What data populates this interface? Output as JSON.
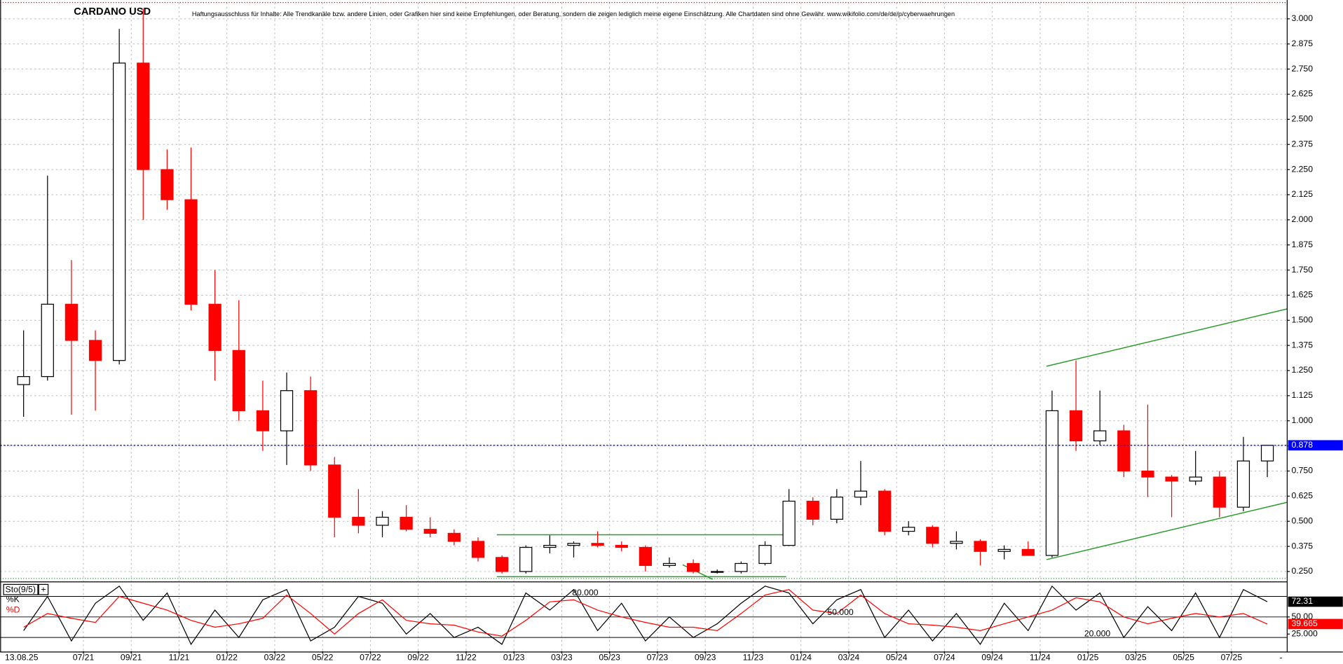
{
  "chart_data": {
    "type": "candlestick",
    "title": "CARDANO USD",
    "disclaimer": "Haftungsausschluss für Inhalte: Alle Trendkanäle bzw. andere Linien, oder Grafiken hier sind keine Empfehlungen, oder Beratung, sondern die zeigen lediglich meine eigene Einschätzung. Alle Chartdaten sind ohne Gewähr.  www.wikifolio.com/de/de/p/cyberwaehrungen",
    "date_label": "13.08.25",
    "up_color": "#000000",
    "down_color": "#ff0000",
    "last_price_color": "#0000ff",
    "grid": true,
    "x": [
      0.5,
      1.5,
      2.5,
      3.5,
      4.5,
      5.5,
      6.5,
      7.5,
      8.5,
      9.5,
      10.5,
      11.5,
      12.5,
      13.5,
      14.5,
      15.5,
      16.5,
      17.5,
      18.5,
      19.5,
      20.5,
      21.5,
      22.5,
      23.5,
      24.5,
      25.5,
      26.5,
      27.5,
      28.5,
      29.5,
      30.5,
      31.5,
      32.5,
      33.5,
      34.5,
      35.5,
      36.5,
      37.5,
      38.5,
      39.5,
      40.5,
      41.5,
      42.5,
      43.5,
      44.5,
      45.5,
      46.5,
      47.5,
      48.5,
      49.5,
      50.5,
      51.5,
      52.5
    ],
    "open": [
      1.18,
      1.22,
      1.58,
      1.4,
      1.3,
      2.78,
      2.25,
      2.1,
      1.58,
      1.35,
      1.05,
      0.95,
      1.15,
      0.78,
      0.52,
      0.48,
      0.52,
      0.46,
      0.44,
      0.4,
      0.32,
      0.25,
      0.37,
      0.38,
      0.39,
      0.38,
      0.37,
      0.28,
      0.29,
      0.25,
      0.25,
      0.29,
      0.38,
      0.6,
      0.51,
      0.62,
      0.65,
      0.45,
      0.47,
      0.39,
      0.4,
      0.35,
      0.36,
      0.33,
      1.05,
      0.9,
      0.95,
      0.75,
      0.72,
      0.7,
      0.72,
      0.57,
      0.8
    ],
    "high": [
      1.45,
      2.22,
      1.8,
      1.45,
      2.95,
      3.05,
      2.35,
      2.36,
      1.75,
      1.6,
      1.2,
      1.24,
      1.22,
      0.82,
      0.66,
      0.55,
      0.58,
      0.52,
      0.46,
      0.42,
      0.33,
      0.38,
      0.43,
      0.4,
      0.45,
      0.4,
      0.38,
      0.32,
      0.31,
      0.26,
      0.3,
      0.4,
      0.66,
      0.62,
      0.66,
      0.8,
      0.66,
      0.5,
      0.48,
      0.45,
      0.41,
      0.38,
      0.4,
      1.15,
      1.3,
      1.15,
      0.98,
      1.08,
      0.73,
      0.85,
      0.75,
      0.92,
      0.88
    ],
    "low": [
      1.02,
      1.2,
      1.03,
      1.05,
      1.28,
      2.0,
      2.05,
      1.55,
      1.2,
      1.0,
      0.85,
      0.78,
      0.75,
      0.42,
      0.44,
      0.42,
      0.45,
      0.42,
      0.38,
      0.3,
      0.24,
      0.24,
      0.34,
      0.32,
      0.37,
      0.35,
      0.25,
      0.27,
      0.24,
      0.24,
      0.24,
      0.28,
      0.38,
      0.48,
      0.49,
      0.58,
      0.43,
      0.43,
      0.37,
      0.36,
      0.28,
      0.31,
      0.33,
      0.32,
      0.85,
      0.88,
      0.72,
      0.62,
      0.52,
      0.68,
      0.52,
      0.55,
      0.72
    ],
    "close": [
      1.22,
      1.58,
      1.4,
      1.3,
      2.78,
      2.25,
      2.1,
      1.58,
      1.35,
      1.05,
      0.95,
      1.15,
      0.78,
      0.52,
      0.48,
      0.52,
      0.46,
      0.44,
      0.4,
      0.32,
      0.25,
      0.37,
      0.38,
      0.39,
      0.38,
      0.37,
      0.28,
      0.29,
      0.25,
      0.25,
      0.29,
      0.38,
      0.6,
      0.51,
      0.62,
      0.65,
      0.45,
      0.47,
      0.39,
      0.4,
      0.35,
      0.36,
      0.33,
      1.05,
      0.9,
      0.95,
      0.75,
      0.72,
      0.7,
      0.72,
      0.57,
      0.8,
      0.878
    ],
    "xlim": [
      -0.48,
      53.33
    ],
    "xticks": [
      {
        "value": 3,
        "label": "07/21"
      },
      {
        "value": 5,
        "label": "09/21"
      },
      {
        "value": 7,
        "label": "11/21"
      },
      {
        "value": 9,
        "label": "01/22"
      },
      {
        "value": 11,
        "label": "03/22"
      },
      {
        "value": 13,
        "label": "05/22"
      },
      {
        "value": 15,
        "label": "07/22"
      },
      {
        "value": 17,
        "label": "09/22"
      },
      {
        "value": 19,
        "label": "11/22"
      },
      {
        "value": 21,
        "label": "01/23"
      },
      {
        "value": 23,
        "label": "03/23"
      },
      {
        "value": 25,
        "label": "05/23"
      },
      {
        "value": 27,
        "label": "07/23"
      },
      {
        "value": 29,
        "label": "09/23"
      },
      {
        "value": 31,
        "label": "11/23"
      },
      {
        "value": 33,
        "label": "01/24"
      },
      {
        "value": 35,
        "label": "03/24"
      },
      {
        "value": 37,
        "label": "05/24"
      },
      {
        "value": 39,
        "label": "07/24"
      },
      {
        "value": 41,
        "label": "09/24"
      },
      {
        "value": 43,
        "label": "11/24"
      },
      {
        "value": 45,
        "label": "01/25"
      },
      {
        "value": 47,
        "label": "03/25"
      },
      {
        "value": 49,
        "label": "05/25"
      },
      {
        "value": 51,
        "label": "07/25"
      }
    ],
    "ylim": [
      0.207,
      3.081
    ],
    "yticks": [
      {
        "value": 0.25,
        "label": "0.250"
      },
      {
        "value": 0.375,
        "label": "0.375"
      },
      {
        "value": 0.5,
        "label": "0.500"
      },
      {
        "value": 0.625,
        "label": "0.625"
      },
      {
        "value": 0.75,
        "label": "0.750"
      },
      {
        "value": 0.875,
        "label": "0.875"
      },
      {
        "value": 1,
        "label": "1.000"
      },
      {
        "value": 1.125,
        "label": "1.125"
      },
      {
        "value": 1.25,
        "label": "1.250"
      },
      {
        "value": 1.375,
        "label": "1.375"
      },
      {
        "value": 1.5,
        "label": "1.500"
      },
      {
        "value": 1.625,
        "label": "1.625"
      },
      {
        "value": 1.75,
        "label": "1.750"
      },
      {
        "value": 1.875,
        "label": "1.875"
      },
      {
        "value": 2,
        "label": "2.000"
      },
      {
        "value": 2.125,
        "label": "2.125"
      },
      {
        "value": 2.25,
        "label": "2.250"
      },
      {
        "value": 2.375,
        "label": "2.375"
      },
      {
        "value": 2.5,
        "label": "2.500"
      },
      {
        "value": 2.625,
        "label": "2.625"
      },
      {
        "value": 2.75,
        "label": "2.750"
      },
      {
        "value": 2.875,
        "label": "2.875"
      },
      {
        "value": 3,
        "label": "3.000"
      }
    ],
    "indicator": {
      "name": "Sto(9/5)",
      "ylim": [
        0,
        100
      ],
      "yticks": [
        {
          "value": 50,
          "label": "50.00"
        },
        {
          "value": 25,
          "label": "25.000"
        }
      ],
      "levels": [
        {
          "value": 80,
          "label": "80.000"
        },
        {
          "value": 50,
          "label": "50.000"
        },
        {
          "value": 20,
          "label": "20.000"
        }
      ],
      "series": [
        {
          "name": "%K",
          "color": "#000000",
          "values": [
            30,
            80,
            15,
            70,
            95,
            45,
            85,
            10,
            60,
            20,
            75,
            90,
            15,
            35,
            80,
            70,
            25,
            55,
            20,
            35,
            10,
            85,
            60,
            90,
            30,
            70,
            15,
            50,
            20,
            40,
            70,
            95,
            85,
            40,
            75,
            90,
            20,
            60,
            15,
            55,
            10,
            70,
            30,
            95,
            60,
            85,
            20,
            65,
            30,
            85,
            20,
            90,
            72.31
          ]
        },
        {
          "name": "%D",
          "color": "#ff0000",
          "values": [
            35,
            55,
            48,
            42,
            80,
            70,
            60,
            45,
            35,
            40,
            48,
            82,
            55,
            25,
            55,
            75,
            45,
            40,
            38,
            28,
            22,
            45,
            72,
            75,
            60,
            50,
            42,
            35,
            35,
            30,
            55,
            82,
            90,
            60,
            55,
            82,
            55,
            40,
            38,
            35,
            30,
            40,
            50,
            60,
            78,
            72,
            50,
            40,
            48,
            55,
            50,
            55,
            39.665
          ]
        }
      ]
    }
  }
}
